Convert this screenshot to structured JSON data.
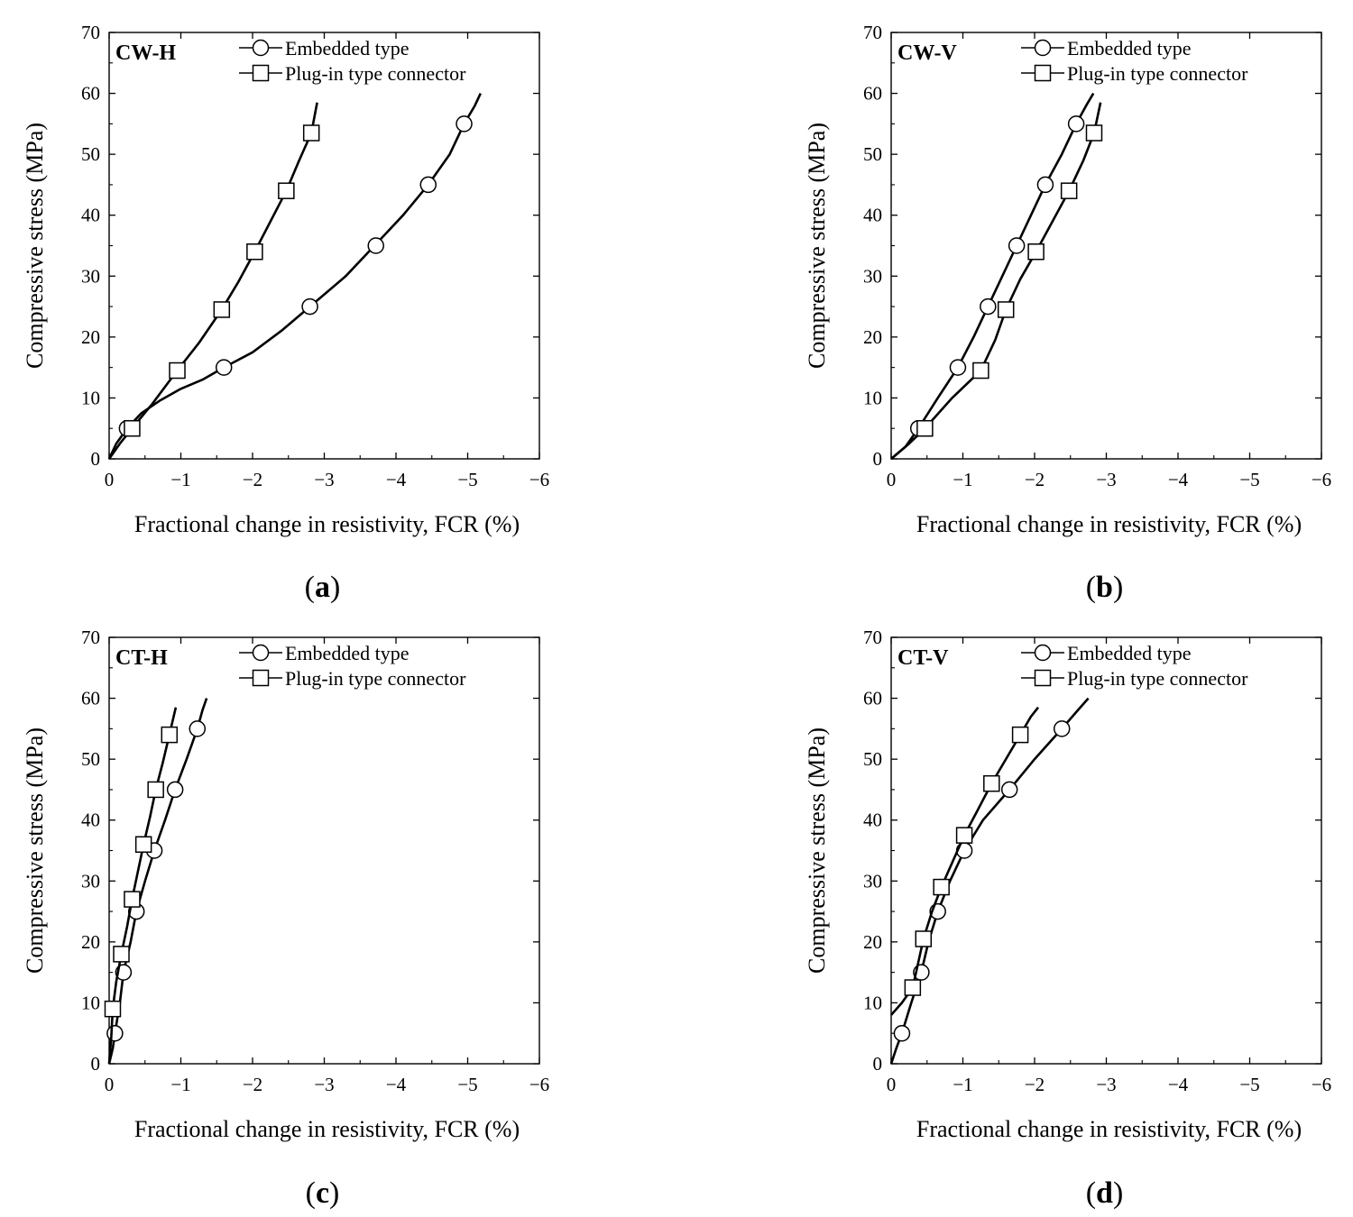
{
  "figure": {
    "chart_data": [
      {
        "type": "line",
        "panel_title": "CW-H",
        "caption": "a",
        "xlabel": "Fractional change in resistivity, FCR (%)",
        "ylabel": "Compressive stress (MPa)",
        "xlim": [
          0,
          -6
        ],
        "ylim": [
          0,
          70
        ],
        "xticks": [
          0,
          -1,
          -2,
          -3,
          -4,
          -5,
          -6
        ],
        "xtick_labels": [
          "0",
          "−1",
          "−2",
          "−3",
          "−4",
          "−5",
          "−6"
        ],
        "yticks": [
          0,
          10,
          20,
          30,
          40,
          50,
          60,
          70
        ],
        "ytick_labels": [
          "0",
          "10",
          "20",
          "30",
          "40",
          "50",
          "60",
          "70"
        ],
        "series": [
          {
            "name": "Embedded type",
            "marker": "circle",
            "x": [
              0,
              -0.1,
              -0.25,
              -0.45,
              -0.7,
              -1.0,
              -1.3,
              -1.6,
              -2.0,
              -2.4,
              -2.8,
              -3.3,
              -3.7,
              -4.1,
              -4.45,
              -4.75,
              -4.95,
              -5.1,
              -5.18
            ],
            "y": [
              0,
              2.5,
              5,
              7.5,
              9.5,
              11.5,
              13,
              15,
              17.5,
              21,
              25,
              30,
              35,
              40,
              45,
              50,
              55,
              58,
              60
            ],
            "marker_x": [
              -0.25,
              -1.6,
              -2.8,
              -3.72,
              -4.45,
              -4.95
            ],
            "marker_y": [
              5,
              15,
              25,
              35,
              45,
              55
            ]
          },
          {
            "name": "Plug-in type connector",
            "marker": "square",
            "x": [
              0,
              -0.15,
              -0.32,
              -0.6,
              -0.95,
              -1.25,
              -1.57,
              -1.8,
              -2.03,
              -2.25,
              -2.47,
              -2.65,
              -2.82,
              -2.9
            ],
            "y": [
              0,
              2.5,
              5,
              9,
              14.5,
              19,
              24.5,
              29,
              34,
              39,
              44,
              49,
              53.5,
              58.5
            ],
            "marker_x": [
              -0.32,
              -0.95,
              -1.57,
              -2.03,
              -2.47,
              -2.82
            ],
            "marker_y": [
              5,
              14.5,
              24.5,
              34,
              44,
              53.5
            ]
          }
        ]
      },
      {
        "type": "line",
        "panel_title": "CW-V",
        "caption": "b",
        "xlabel": "Fractional change in resistivity, FCR (%)",
        "ylabel": "Compressive stress (MPa)",
        "xlim": [
          0,
          -6
        ],
        "ylim": [
          0,
          70
        ],
        "xticks": [
          0,
          -1,
          -2,
          -3,
          -4,
          -5,
          -6
        ],
        "xtick_labels": [
          "0",
          "−1",
          "−2",
          "−3",
          "−4",
          "−5",
          "−6"
        ],
        "yticks": [
          0,
          10,
          20,
          30,
          40,
          50,
          60,
          70
        ],
        "ytick_labels": [
          "0",
          "10",
          "20",
          "30",
          "40",
          "50",
          "60",
          "70"
        ],
        "series": [
          {
            "name": "Embedded type",
            "marker": "circle",
            "x": [
              0,
              -0.2,
              -0.38,
              -0.65,
              -0.93,
              -1.15,
              -1.35,
              -1.55,
              -1.75,
              -1.95,
              -2.15,
              -2.38,
              -2.58,
              -2.72,
              -2.82
            ],
            "y": [
              0,
              2,
              5,
              10,
              15,
              20,
              25,
              30,
              35,
              40,
              45,
              50,
              55,
              58,
              60
            ],
            "marker_x": [
              -0.38,
              -0.93,
              -1.35,
              -1.75,
              -2.15,
              -2.58
            ],
            "marker_y": [
              5,
              15,
              25,
              35,
              45,
              55
            ]
          },
          {
            "name": "Plug-in type connector",
            "marker": "square",
            "x": [
              0,
              -0.25,
              -0.47,
              -0.85,
              -1.25,
              -1.45,
              -1.6,
              -1.8,
              -2.02,
              -2.25,
              -2.48,
              -2.68,
              -2.83,
              -2.92
            ],
            "y": [
              0,
              2.5,
              5,
              10,
              14.5,
              19.5,
              24.5,
              29.5,
              34,
              39,
              44,
              49,
              53.5,
              58.5
            ],
            "marker_x": [
              -0.47,
              -1.25,
              -1.6,
              -2.02,
              -2.48,
              -2.83
            ],
            "marker_y": [
              5,
              14.5,
              24.5,
              34,
              44,
              53.5
            ]
          }
        ]
      },
      {
        "type": "line",
        "panel_title": "CT-H",
        "caption": "c",
        "xlabel": "Fractional change in resistivity, FCR (%)",
        "ylabel": "Compressive stress (MPa)",
        "xlim": [
          0,
          -6
        ],
        "ylim": [
          0,
          70
        ],
        "xticks": [
          0,
          -1,
          -2,
          -3,
          -4,
          -5,
          -6
        ],
        "xtick_labels": [
          "0",
          "−1",
          "−2",
          "−3",
          "−4",
          "−5",
          "−6"
        ],
        "yticks": [
          0,
          10,
          20,
          30,
          40,
          50,
          60,
          70
        ],
        "ytick_labels": [
          "0",
          "10",
          "20",
          "30",
          "40",
          "50",
          "60",
          "70"
        ],
        "series": [
          {
            "name": "Embedded type",
            "marker": "circle",
            "x": [
              0,
              -0.05,
              -0.08,
              -0.15,
              -0.2,
              -0.3,
              -0.38,
              -0.5,
              -0.63,
              -0.78,
              -0.92,
              -1.08,
              -1.23,
              -1.3,
              -1.36
            ],
            "y": [
              0,
              2.5,
              5,
              10,
              15,
              20,
              25,
              30,
              35,
              40,
              45,
              50,
              55,
              58,
              60
            ],
            "marker_x": [
              -0.08,
              -0.2,
              -0.38,
              -0.63,
              -0.92,
              -1.23
            ],
            "marker_y": [
              5,
              15,
              25,
              35,
              45,
              55
            ]
          },
          {
            "name": "Plug-in type connector",
            "marker": "square",
            "x": [
              0,
              -0.03,
              -0.05,
              -0.1,
              -0.17,
              -0.25,
              -0.32,
              -0.4,
              -0.48,
              -0.57,
              -0.65,
              -0.75,
              -0.84,
              -0.93
            ],
            "y": [
              0,
              4.5,
              9,
              13.5,
              18,
              22.5,
              27,
              31.5,
              36,
              40.5,
              45,
              49.5,
              54,
              58.5
            ],
            "marker_x": [
              -0.05,
              -0.17,
              -0.32,
              -0.48,
              -0.65,
              -0.84
            ],
            "marker_y": [
              9,
              18,
              27,
              36,
              45,
              54
            ]
          }
        ]
      },
      {
        "type": "line",
        "panel_title": "CT-V",
        "caption": "d",
        "xlabel": "Fractional change in resistivity, FCR (%)",
        "ylabel": "Compressive stress (MPa)",
        "xlim": [
          0,
          -6
        ],
        "ylim": [
          0,
          70
        ],
        "xticks": [
          0,
          -1,
          -2,
          -3,
          -4,
          -5,
          -6
        ],
        "xtick_labels": [
          "0",
          "−1",
          "−2",
          "−3",
          "−4",
          "−5",
          "−6"
        ],
        "yticks": [
          0,
          10,
          20,
          30,
          40,
          50,
          60,
          70
        ],
        "ytick_labels": [
          "0",
          "10",
          "20",
          "30",
          "40",
          "50",
          "60",
          "70"
        ],
        "series": [
          {
            "name": "Embedded type",
            "marker": "circle",
            "x": [
              0,
              -0.07,
              -0.15,
              -0.28,
              -0.42,
              -0.52,
              -0.65,
              -0.82,
              -1.02,
              -1.28,
              -1.65,
              -2.0,
              -2.38,
              -2.6,
              -2.75
            ],
            "y": [
              0,
              2.5,
              5,
              10,
              15,
              20,
              25,
              30,
              35,
              40,
              45,
              50,
              55,
              58,
              60
            ],
            "marker_x": [
              -0.15,
              -0.42,
              -0.65,
              -1.02,
              -1.65,
              -2.38
            ],
            "marker_y": [
              5,
              15,
              25,
              35,
              45,
              55
            ]
          },
          {
            "name": "Plug-in type connector",
            "marker": "square",
            "x": [
              0,
              -0.15,
              -0.3,
              -0.45,
              -0.57,
              -0.7,
              -0.85,
              -1.02,
              -1.2,
              -1.4,
              -1.6,
              -1.8,
              -1.95,
              -2.05
            ],
            "y": [
              8,
              10,
              12.5,
              20.5,
              25,
              29,
              33,
              37.5,
              41.5,
              46,
              50,
              54,
              57,
              58.5
            ],
            "marker_x": [
              -0.3,
              -0.45,
              -0.7,
              -1.02,
              -1.4,
              -1.8
            ],
            "marker_y": [
              12.5,
              20.5,
              29,
              37.5,
              46,
              54
            ]
          }
        ]
      }
    ]
  }
}
